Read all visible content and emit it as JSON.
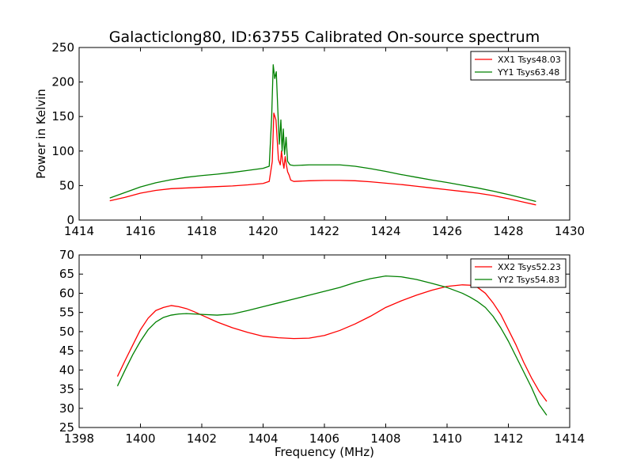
{
  "figure": {
    "title": "Galacticlong80, ID:63755 Calibrated On-source spectrum"
  },
  "chart_data": [
    {
      "type": "line",
      "title": "Galacticlong80, ID:63755 Calibrated On-source spectrum",
      "xlabel": "",
      "ylabel": "Power in Kelvin",
      "xlim": [
        1414,
        1430
      ],
      "ylim": [
        0,
        250
      ],
      "xticks": [
        1414,
        1416,
        1418,
        1420,
        1422,
        1424,
        1426,
        1428,
        1430
      ],
      "yticks": [
        0,
        50,
        100,
        150,
        200,
        250
      ],
      "grid": false,
      "legend_position": "top-right",
      "series": [
        {
          "name": "XX1 Tsys48.03",
          "color": "#ff0000",
          "x": [
            1415.0,
            1415.5,
            1416.0,
            1416.5,
            1417.0,
            1417.5,
            1418.0,
            1418.5,
            1419.0,
            1419.5,
            1420.0,
            1420.2,
            1420.3,
            1420.35,
            1420.42,
            1420.5,
            1420.56,
            1420.6,
            1420.64,
            1420.68,
            1420.72,
            1420.76,
            1420.8,
            1420.85,
            1420.9,
            1421.0,
            1421.5,
            1422.0,
            1422.5,
            1423.0,
            1423.5,
            1424.0,
            1424.5,
            1425.0,
            1425.5,
            1426.0,
            1426.5,
            1427.0,
            1427.5,
            1428.0,
            1428.5,
            1428.9
          ],
          "y": [
            28,
            33,
            39,
            43,
            45.5,
            46.5,
            47.5,
            48.5,
            49.5,
            51,
            53,
            56,
            85,
            155,
            145,
            88,
            80,
            100,
            85,
            75,
            92,
            80,
            70,
            65,
            58,
            56,
            57,
            57.5,
            57.5,
            57,
            55.5,
            53.5,
            51.5,
            49,
            46.5,
            44,
            41.5,
            39,
            35.5,
            31,
            26,
            22
          ]
        },
        {
          "name": "YY1 Tsys63.48",
          "color": "#008000",
          "x": [
            1415.0,
            1415.5,
            1416.0,
            1416.5,
            1417.0,
            1417.5,
            1418.0,
            1418.5,
            1419.0,
            1419.5,
            1420.0,
            1420.2,
            1420.28,
            1420.33,
            1420.38,
            1420.43,
            1420.48,
            1420.53,
            1420.58,
            1420.62,
            1420.66,
            1420.7,
            1420.75,
            1420.8,
            1420.88,
            1421.0,
            1421.5,
            1422.0,
            1422.5,
            1423.0,
            1423.5,
            1424.0,
            1424.5,
            1425.0,
            1425.5,
            1426.0,
            1426.5,
            1427.0,
            1427.5,
            1428.0,
            1428.5,
            1428.9
          ],
          "y": [
            32,
            40,
            48,
            54,
            58.5,
            62,
            64.5,
            66.5,
            69,
            72,
            75,
            78,
            150,
            225,
            205,
            215,
            160,
            110,
            145,
            100,
            132,
            95,
            120,
            85,
            80,
            79,
            80,
            80,
            80,
            78,
            74.5,
            70.5,
            66,
            62,
            58,
            54.5,
            50.5,
            46.5,
            42,
            37,
            31.5,
            27
          ]
        }
      ]
    },
    {
      "type": "line",
      "title": "",
      "xlabel": "Frequency (MHz)",
      "ylabel": "",
      "xlim": [
        1398,
        1414
      ],
      "ylim": [
        25,
        70
      ],
      "xticks": [
        1398,
        1400,
        1402,
        1404,
        1406,
        1408,
        1410,
        1412,
        1414
      ],
      "yticks": [
        25,
        30,
        35,
        40,
        45,
        50,
        55,
        60,
        65,
        70
      ],
      "grid": false,
      "legend_position": "top-right",
      "series": [
        {
          "name": "XX2 Tsys52.23",
          "color": "#ff0000",
          "x": [
            1399.25,
            1399.5,
            1399.75,
            1400.0,
            1400.25,
            1400.5,
            1400.75,
            1401.0,
            1401.25,
            1401.5,
            1401.75,
            1402.0,
            1402.5,
            1403.0,
            1403.5,
            1404.0,
            1404.5,
            1405.0,
            1405.5,
            1406.0,
            1406.5,
            1407.0,
            1407.5,
            1408.0,
            1408.5,
            1409.0,
            1409.5,
            1410.0,
            1410.25,
            1410.5,
            1410.75,
            1411.0,
            1411.25,
            1411.5,
            1411.75,
            1412.0,
            1412.25,
            1412.5,
            1412.75,
            1413.0,
            1413.25
          ],
          "y": [
            38.3,
            42.5,
            46.5,
            50.5,
            53.5,
            55.5,
            56.3,
            56.8,
            56.5,
            56,
            55.2,
            54.3,
            52.5,
            51,
            49.8,
            48.8,
            48.4,
            48.2,
            48.3,
            49,
            50.3,
            52,
            54,
            56.3,
            58,
            59.5,
            60.8,
            61.8,
            62,
            62.2,
            62.1,
            61.5,
            60,
            57.5,
            54.5,
            50.5,
            46.5,
            42,
            38,
            34.5,
            31.8
          ]
        },
        {
          "name": "YY2 Tsys54.83",
          "color": "#008000",
          "x": [
            1399.25,
            1399.5,
            1399.75,
            1400.0,
            1400.25,
            1400.5,
            1400.75,
            1401.0,
            1401.25,
            1401.5,
            1401.75,
            1402.0,
            1402.5,
            1403.0,
            1403.5,
            1404.0,
            1404.5,
            1405.0,
            1405.5,
            1406.0,
            1406.5,
            1407.0,
            1407.5,
            1408.0,
            1408.5,
            1409.0,
            1409.5,
            1410.0,
            1410.5,
            1410.75,
            1411.0,
            1411.25,
            1411.5,
            1411.75,
            1412.0,
            1412.25,
            1412.5,
            1412.75,
            1413.0,
            1413.25
          ],
          "y": [
            35.8,
            40,
            44,
            47.5,
            50.5,
            52.5,
            53.7,
            54.3,
            54.6,
            54.7,
            54.6,
            54.5,
            54.3,
            54.6,
            55.5,
            56.5,
            57.5,
            58.5,
            59.5,
            60.5,
            61.5,
            62.8,
            63.8,
            64.5,
            64.3,
            63.6,
            62.6,
            61.5,
            60,
            59,
            57.8,
            56.3,
            54,
            51,
            47.5,
            43.5,
            39.5,
            35.5,
            31,
            28.2
          ]
        }
      ]
    }
  ]
}
